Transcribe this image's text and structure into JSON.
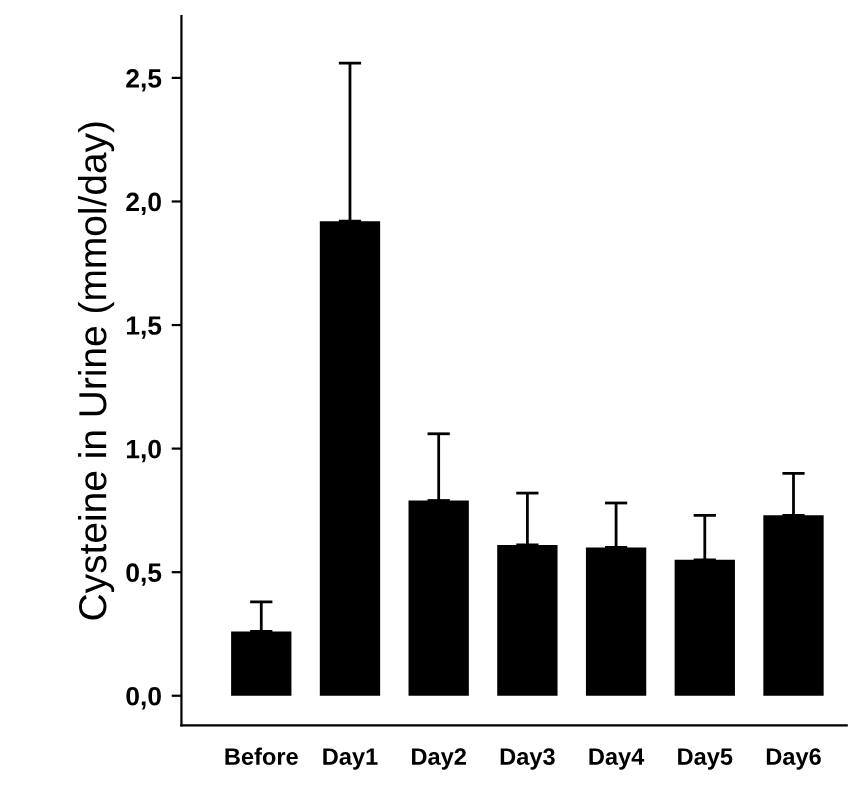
{
  "chart_data": {
    "type": "bar",
    "ylabel": "Cysteine in Urine (mmol/day)",
    "categories": [
      "Before",
      "Day1",
      "Day2",
      "Day3",
      "Day4",
      "Day5",
      "Day6"
    ],
    "values": [
      0.26,
      1.92,
      0.79,
      0.61,
      0.6,
      0.55,
      0.73
    ],
    "errors": [
      [
        0.26,
        0.38
      ],
      [
        1.92,
        2.56
      ],
      [
        0.79,
        1.06
      ],
      [
        0.61,
        0.82
      ],
      [
        0.6,
        0.78
      ],
      [
        0.55,
        0.73
      ],
      [
        0.73,
        0.9
      ]
    ],
    "color": "#000000",
    "ylim": [
      -0.12,
      2.75
    ],
    "yticks": [
      {
        "value": 0,
        "label": "0,0"
      },
      {
        "value": 0.5,
        "label": "0,5"
      },
      {
        "value": 1,
        "label": "1,0"
      },
      {
        "value": 1.5,
        "label": "1,5"
      },
      {
        "value": 2,
        "label": "2,0"
      },
      {
        "value": 2.5,
        "label": "2,5"
      }
    ],
    "grid": false
  }
}
